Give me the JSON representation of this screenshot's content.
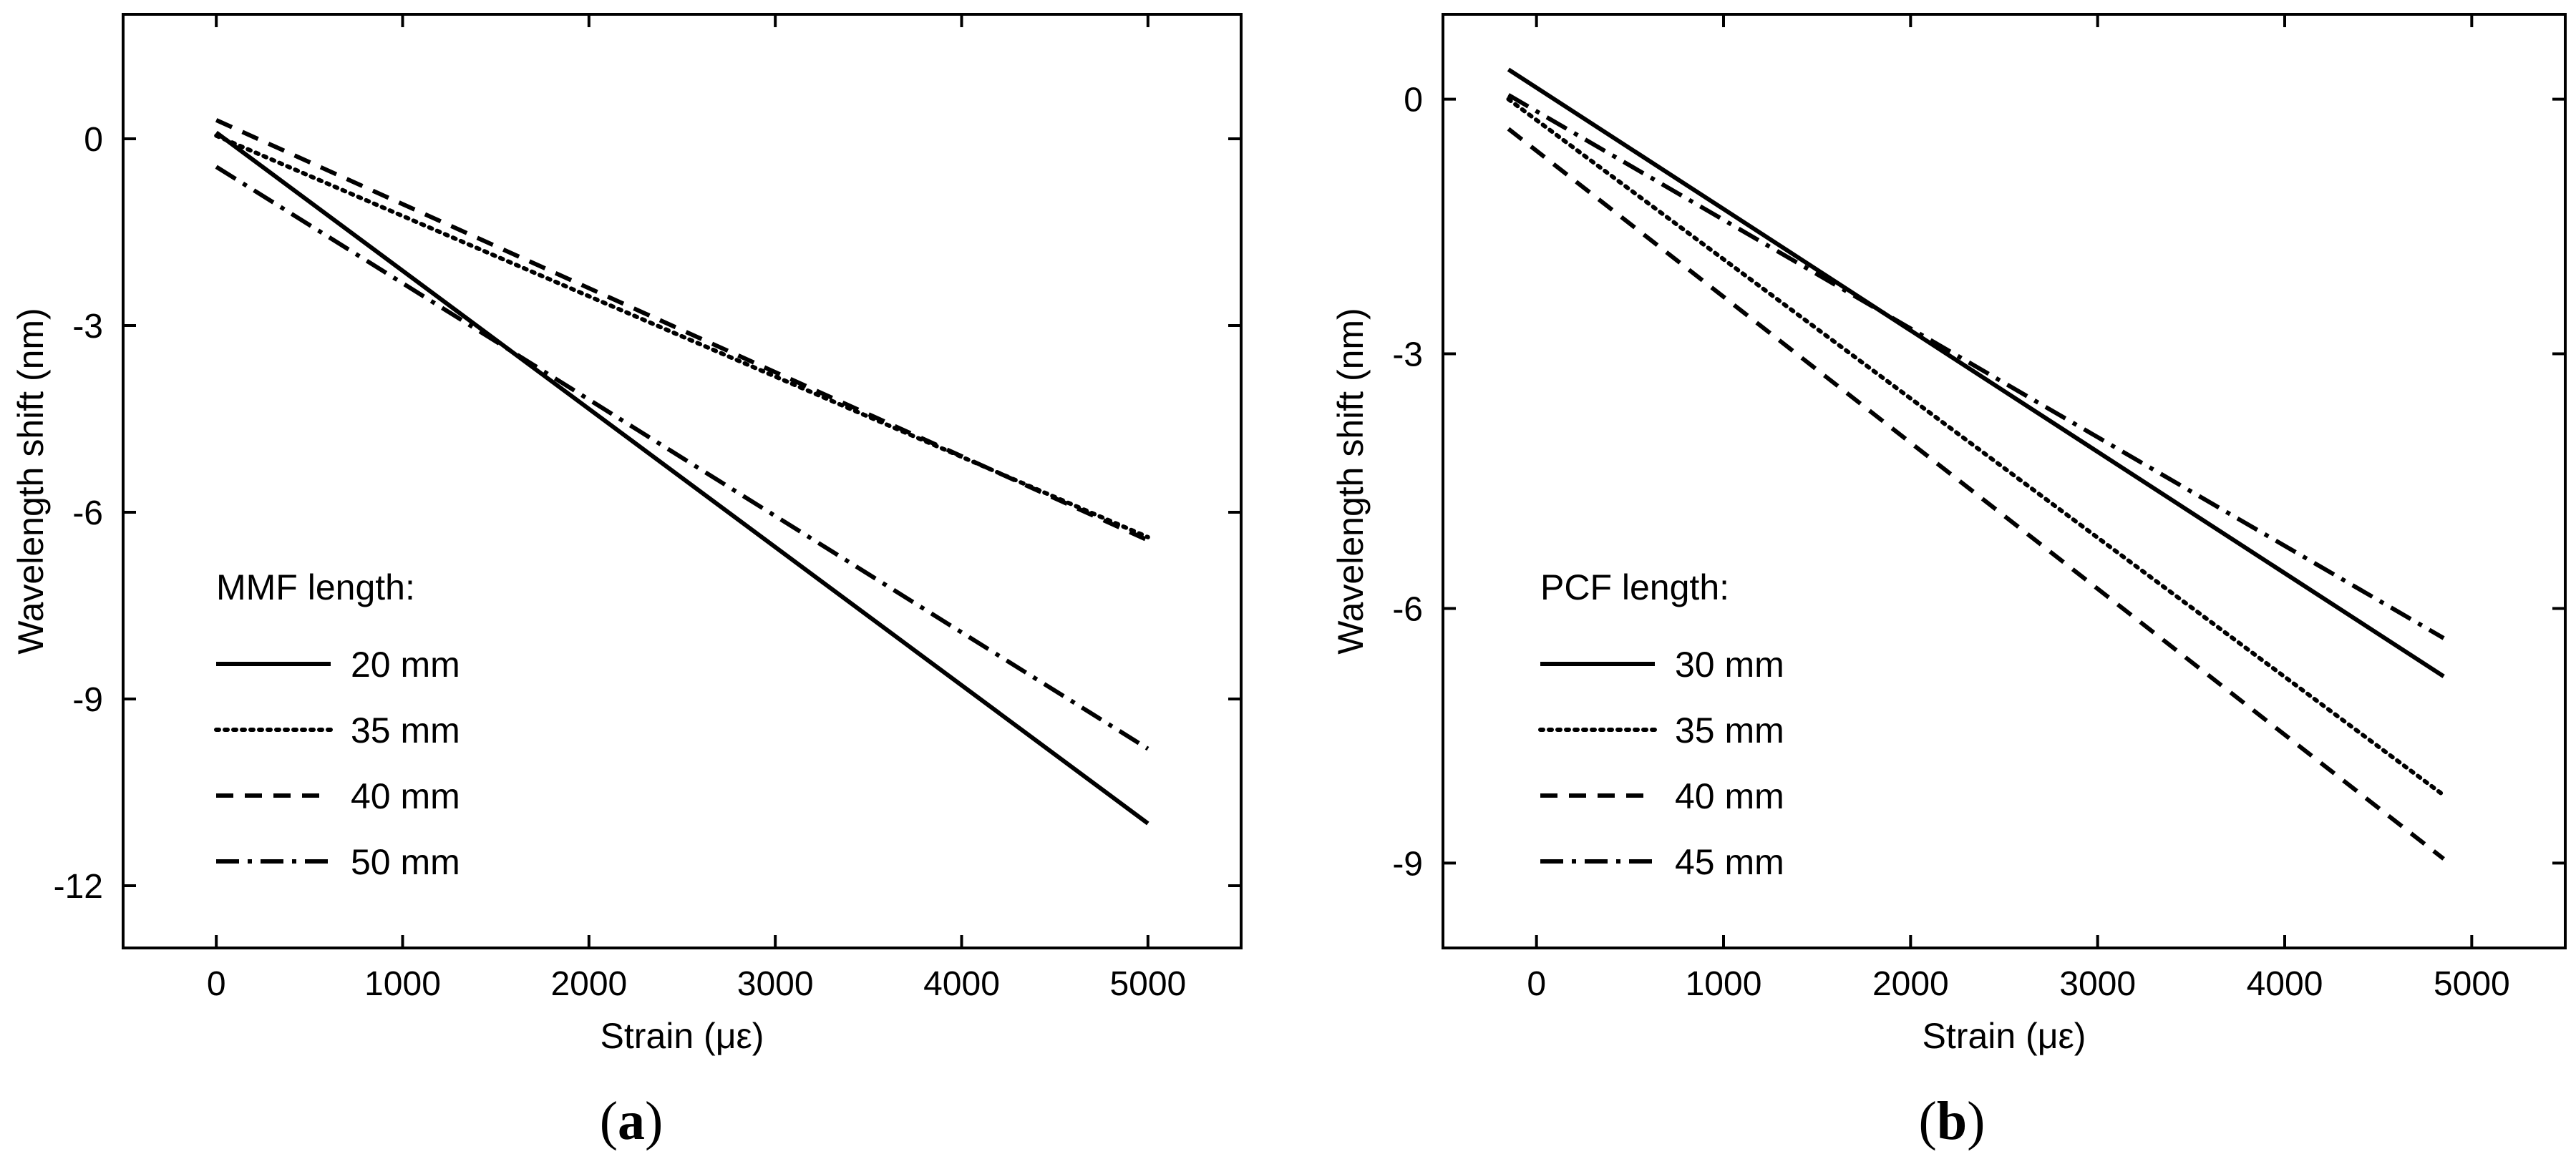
{
  "chart_data": [
    {
      "type": "line",
      "panel_label": "a",
      "xlabel": "Strain (με)",
      "ylabel": "Wavelength shift (nm)",
      "xlim": [
        -500,
        5500
      ],
      "ylim": [
        -13,
        2
      ],
      "xticks": [
        0,
        1000,
        2000,
        3000,
        4000,
        5000
      ],
      "yticks": [
        0,
        -3,
        -6,
        -9,
        -12
      ],
      "legend_title": "MMF length:",
      "legend_position": "bottom-left",
      "series": [
        {
          "name": "20 mm",
          "style": "solid",
          "x": [
            0,
            5000
          ],
          "y": [
            0.1,
            -11.0
          ]
        },
        {
          "name": "35 mm",
          "style": "dotted",
          "x": [
            0,
            5000
          ],
          "y": [
            0.05,
            -6.4
          ]
        },
        {
          "name": "40 mm",
          "style": "dashed",
          "x": [
            0,
            5000
          ],
          "y": [
            0.3,
            -6.45
          ]
        },
        {
          "name": "50 mm",
          "style": "dashdot",
          "x": [
            0,
            5000
          ],
          "y": [
            -0.45,
            -9.8
          ]
        }
      ]
    },
    {
      "type": "line",
      "panel_label": "b",
      "xlabel": "Strain (με)",
      "ylabel": "Wavelength shift (nm)",
      "xlim": [
        -500,
        5500
      ],
      "ylim": [
        -10,
        1
      ],
      "xticks": [
        0,
        1000,
        2000,
        3000,
        4000,
        5000
      ],
      "yticks": [
        0,
        -3,
        -6,
        -9
      ],
      "legend_title": "PCF length:",
      "legend_position": "bottom-left",
      "series": [
        {
          "name": "30 mm",
          "style": "solid",
          "x": [
            -150,
            4850
          ],
          "y": [
            0.35,
            -6.8
          ]
        },
        {
          "name": "35 mm",
          "style": "dotted",
          "x": [
            -150,
            4850
          ],
          "y": [
            0.0,
            -8.2
          ]
        },
        {
          "name": "40 mm",
          "style": "dashed",
          "x": [
            -150,
            4850
          ],
          "y": [
            -0.35,
            -8.95
          ]
        },
        {
          "name": "45 mm",
          "style": "dashdot",
          "x": [
            -150,
            4850
          ],
          "y": [
            0.05,
            -6.35
          ]
        }
      ]
    }
  ]
}
